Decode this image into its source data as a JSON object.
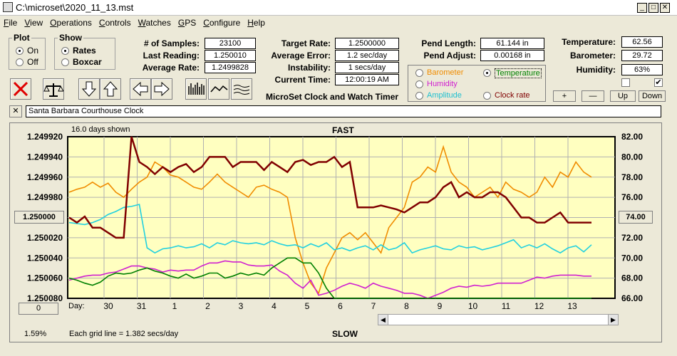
{
  "window": {
    "title": "C:\\microset\\2020_11_13.mst"
  },
  "menu": [
    {
      "label": "File",
      "u": "F",
      "rest": "ile"
    },
    {
      "label": "View",
      "u": "V",
      "rest": "iew"
    },
    {
      "label": "Operations",
      "u": "O",
      "rest": "perations"
    },
    {
      "label": "Controls",
      "u": "C",
      "rest": "ontrols"
    },
    {
      "label": "Watches",
      "u": "W",
      "rest": "atches"
    },
    {
      "label": "GPS",
      "u": "G",
      "rest": "PS"
    },
    {
      "label": "Configure",
      "u": "C",
      "rest": "onfigure"
    },
    {
      "label": "Help",
      "u": "H",
      "rest": "elp"
    }
  ],
  "plot": {
    "legend": "Plot",
    "on": "On",
    "off": "Off"
  },
  "show": {
    "legend": "Show",
    "rates": "Rates",
    "boxcar": "Boxcar"
  },
  "stats": {
    "samples_label": "# of Samples:",
    "samples": "23100",
    "last_label": "Last Reading:",
    "last": "1.250010",
    "avg_label": "Average Rate:",
    "avg": "1.2499828",
    "target_label": "Target Rate:",
    "target": "1.2500000",
    "averr_label": "Average Error:",
    "averr": "1.2 sec/day",
    "instab_label": "Instability:",
    "instab": "1 secs/day",
    "time_label": "Current Time:",
    "time": "12:00:19 AM",
    "pendlen_label": "Pend Length:",
    "pendlen": "61.144 in",
    "pendadj_label": "Pend Adjust:",
    "pendadj": "0.00168 in",
    "temp_label": "Temperature:",
    "temp": "62.56",
    "baro_label": "Barometer:",
    "baro": "29.72",
    "hum_label": "Humidity:",
    "hum": "63%"
  },
  "app_title": "MicroSet Clock and Watch Timer",
  "sensor_options": {
    "barometer": "Barometer",
    "temperature": "Temperature",
    "humidity": "Humidity",
    "amplitude": "Amplitude",
    "clockrate": "Clock rate"
  },
  "controls": {
    "plus": "+",
    "minus": "—",
    "up": "Up",
    "down": "Down"
  },
  "clock_name": "Santa Barbara Courthouse Clock",
  "close_x": "✕",
  "colors": {
    "barometer": "#f08c00",
    "temperature": "#008000",
    "humidity": "#d020d0",
    "amplitude": "#20d0e0",
    "clockrate": "#800000",
    "plotbg": "#ffffc0"
  },
  "chart": {
    "days_shown": "16.0 days shown",
    "fast": "FAST",
    "slow": "SLOW",
    "grid_note": "Each grid line = 1.382 secs/day",
    "percent": "1.59%",
    "left_btn": "1.250000",
    "right_btn": "74.00",
    "zero_btn": "0",
    "day_label": "Day:"
  },
  "chart_data": {
    "type": "line",
    "y_left_ticks": [
      "1.249920",
      "1.249940",
      "1.249960",
      "1.249980",
      "1.250000",
      "1.250020",
      "1.250040",
      "1.250060",
      "1.250080"
    ],
    "y_right_ticks": [
      "82.00",
      "80.00",
      "78.00",
      "76.00",
      "74.00",
      "72.00",
      "70.00",
      "68.00",
      "66.00"
    ],
    "x_ticks": [
      "30",
      "31",
      "1",
      "2",
      "3",
      "4",
      "5",
      "6",
      "7",
      "8",
      "9",
      "10",
      "11",
      "12",
      "13"
    ],
    "ylim_left": [
      1.24992,
      1.25008
    ],
    "ylim_right": [
      66,
      82
    ],
    "series": [
      {
        "name": "Clock rate",
        "axis": "left",
        "color": "#800000",
        "values": [
          1.25,
          1.250005,
          1.249999,
          1.25001,
          1.25001,
          1.250015,
          1.25002,
          1.25002,
          1.249905,
          1.249945,
          1.24995,
          1.249957,
          1.24995,
          1.249955,
          1.24995,
          1.249947,
          1.249955,
          1.24995,
          1.24994,
          1.24994,
          1.24994,
          1.24995,
          1.249945,
          1.249945,
          1.249945,
          1.249953,
          1.249945,
          1.24995,
          1.249955,
          1.249945,
          1.249943,
          1.249948,
          1.249945,
          1.249945,
          1.24994,
          1.24995,
          1.249945,
          1.24999,
          1.24999,
          1.24999,
          1.249988,
          1.24999,
          1.249992,
          1.249995,
          1.24999,
          1.249985,
          1.249985,
          1.24998,
          1.24997,
          1.249965,
          1.24998,
          1.249975,
          1.24998,
          1.24998,
          1.249975,
          1.249975,
          1.24998,
          1.24999,
          1.25,
          1.25,
          1.250005,
          1.250005,
          1.25,
          1.249995,
          1.250005,
          1.250005,
          1.250005,
          1.250005
        ]
      },
      {
        "name": "Temperature",
        "axis": "right",
        "color": "#008000",
        "values": [
          68.0,
          67.8,
          67.5,
          67.3,
          67.6,
          68.2,
          68.5,
          68.4,
          68.5,
          68.8,
          69.0,
          68.7,
          68.5,
          68.2,
          68.0,
          68.4,
          68.0,
          68.2,
          68.5,
          68.5,
          68.0,
          68.2,
          68.5,
          68.3,
          68.5,
          68.3,
          69.0,
          69.5,
          70.0,
          70.0,
          69.5,
          69.5,
          68.5,
          67.0,
          66.0,
          66.0,
          66.0,
          66.0,
          66.0,
          66.0,
          66.0,
          66.0,
          66.0,
          66.0,
          66.0,
          66.0,
          66.0,
          66.0,
          66.0,
          66.0,
          66.0,
          66.0,
          66.0,
          66.0,
          66.0,
          66.0,
          66.0,
          66.0,
          66.0,
          66.0,
          66.0,
          66.0,
          66.0,
          66.0,
          66.0,
          66.0,
          66.0,
          66.0
        ]
      },
      {
        "name": "Humidity",
        "axis": "right",
        "color": "#d020d0",
        "values": [
          67.8,
          68.0,
          68.2,
          68.3,
          68.3,
          68.5,
          68.6,
          68.9,
          69.2,
          69.2,
          69.0,
          68.9,
          68.6,
          68.8,
          68.7,
          68.8,
          68.8,
          69.2,
          69.5,
          69.5,
          69.7,
          69.6,
          69.6,
          69.3,
          69.2,
          69.2,
          69.3,
          68.7,
          68.3,
          67.5,
          67.0,
          67.8,
          66.3,
          66.5,
          66.8,
          67.2,
          67.5,
          67.3,
          67.0,
          67.5,
          67.2,
          67.0,
          66.8,
          66.5,
          66.5,
          66.3,
          66.0,
          66.3,
          66.6,
          67.0,
          67.2,
          67.1,
          67.3,
          67.2,
          67.3,
          67.5,
          67.5,
          67.5,
          67.5,
          67.8,
          68.1,
          68.0,
          68.2,
          68.3,
          68.3,
          68.3,
          68.2,
          68.2
        ]
      },
      {
        "name": "Amplitude",
        "axis": "right",
        "color": "#20d0e0",
        "values": [
          73.5,
          73.4,
          73.3,
          73.5,
          73.8,
          74.3,
          74.6,
          75.0,
          75.1,
          75.3,
          71.0,
          70.5,
          70.9,
          71.0,
          71.2,
          71.0,
          71.1,
          71.4,
          71.0,
          71.5,
          71.3,
          71.7,
          71.5,
          71.4,
          71.5,
          71.3,
          71.7,
          71.4,
          71.2,
          71.3,
          71.0,
          71.4,
          71.1,
          71.5,
          70.8,
          71.0,
          70.7,
          71.0,
          71.2,
          70.8,
          71.3,
          70.8,
          71.0,
          71.5,
          70.5,
          70.8,
          71.0,
          71.2,
          70.9,
          70.8,
          71.2,
          71.0,
          71.1,
          70.8,
          71.0,
          71.2,
          71.5,
          71.8,
          71.0,
          71.3,
          71.0,
          71.4,
          70.9,
          70.5,
          71.0,
          71.2,
          70.6,
          71.3
        ]
      },
      {
        "name": "Barometer",
        "axis": "right",
        "color": "#f08c00",
        "values": [
          76.5,
          76.8,
          77.0,
          77.5,
          77.0,
          77.4,
          76.5,
          76.0,
          76.8,
          77.5,
          78.0,
          79.5,
          79.0,
          78.2,
          78.0,
          77.5,
          77.0,
          76.8,
          77.5,
          78.3,
          77.5,
          77.0,
          76.5,
          76.0,
          77.0,
          77.2,
          76.8,
          76.5,
          76.0,
          72.0,
          69.5,
          67.5,
          66.5,
          69.0,
          70.5,
          72.0,
          72.5,
          71.8,
          72.5,
          71.5,
          70.5,
          73.0,
          74.0,
          75.0,
          77.5,
          78.0,
          79.0,
          78.5,
          81.0,
          78.5,
          77.5,
          77.0,
          76.0,
          76.5,
          77.0,
          76.0,
          77.5,
          76.8,
          76.5,
          76.0,
          76.5,
          78.0,
          77.0,
          78.5,
          78.0,
          79.5,
          78.5,
          78.0
        ]
      }
    ]
  }
}
